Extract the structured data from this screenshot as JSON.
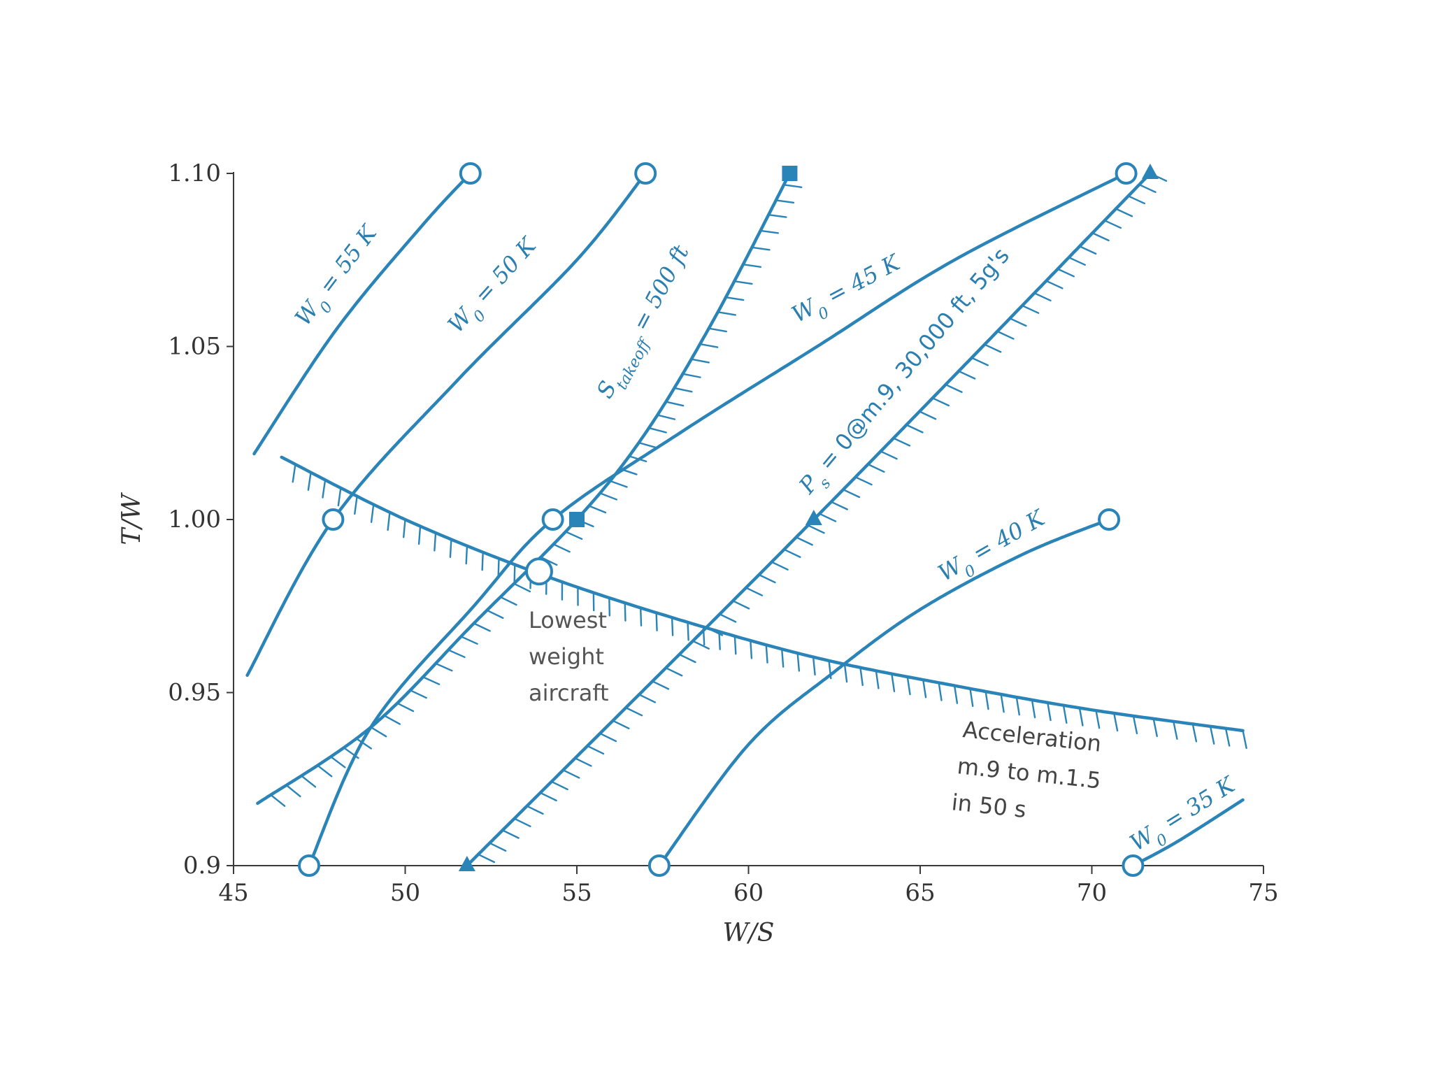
{
  "chart_data": {
    "type": "line",
    "title": "",
    "xlabel": "W/S",
    "ylabel": "T/W",
    "xlim": [
      45,
      75
    ],
    "ylim": [
      0.9,
      1.1
    ],
    "x_ticks": [
      "45",
      "50",
      "55",
      "60",
      "65",
      "70",
      "75"
    ],
    "y_ticks": [
      "0.9",
      "0.95",
      "1.00",
      "1.05",
      "1.10"
    ],
    "y_tick_values": [
      0.9,
      0.95,
      1.0,
      1.05,
      1.1
    ],
    "x_tick_values": [
      45,
      50,
      55,
      60,
      65,
      70,
      75
    ],
    "grid": false,
    "line_color": "#2a84b8",
    "series": [
      {
        "label": "W₀ = 55 K",
        "kind": "weight",
        "points": [
          [
            45.6,
            1.019
          ],
          [
            48.0,
            1.055
          ],
          [
            50.5,
            1.085
          ],
          [
            51.9,
            1.1
          ]
        ],
        "markers": [
          {
            "x": 51.9,
            "y": 1.1,
            "shape": "open-circle"
          }
        ]
      },
      {
        "label": "W₀ = 50 K",
        "kind": "weight",
        "points": [
          [
            45.4,
            0.955
          ],
          [
            47.9,
            1.0
          ],
          [
            51.5,
            1.04
          ],
          [
            55.0,
            1.075
          ],
          [
            57.0,
            1.1
          ]
        ],
        "markers": [
          {
            "x": 47.9,
            "y": 1.0,
            "shape": "open-circle"
          },
          {
            "x": 57.0,
            "y": 1.1,
            "shape": "open-circle"
          }
        ]
      },
      {
        "label": "W₀ = 45 K",
        "kind": "weight",
        "points": [
          [
            47.2,
            0.9
          ],
          [
            49.0,
            0.94
          ],
          [
            52.0,
            0.975
          ],
          [
            54.3,
            1.0
          ],
          [
            58.0,
            1.025
          ],
          [
            62.0,
            1.05
          ],
          [
            66.0,
            1.075
          ],
          [
            71.0,
            1.1
          ]
        ],
        "markers": [
          {
            "x": 47.2,
            "y": 0.9,
            "shape": "open-circle"
          },
          {
            "x": 54.3,
            "y": 1.0,
            "shape": "open-circle"
          },
          {
            "x": 71.0,
            "y": 1.1,
            "shape": "open-circle"
          }
        ]
      },
      {
        "label": "W₀ = 40 K",
        "kind": "weight",
        "points": [
          [
            57.4,
            0.9
          ],
          [
            60.0,
            0.935
          ],
          [
            62.5,
            0.956
          ],
          [
            65.0,
            0.974
          ],
          [
            68.0,
            0.99
          ],
          [
            70.5,
            1.0
          ]
        ],
        "markers": [
          {
            "x": 57.4,
            "y": 0.9,
            "shape": "open-circle"
          },
          {
            "x": 70.5,
            "y": 1.0,
            "shape": "open-circle"
          }
        ]
      },
      {
        "label": "W₀ = 35 K",
        "kind": "weight",
        "points": [
          [
            71.2,
            0.9
          ],
          [
            72.5,
            0.907
          ],
          [
            74.4,
            0.919
          ]
        ],
        "markers": [
          {
            "x": 71.2,
            "y": 0.9,
            "shape": "open-circle"
          }
        ]
      },
      {
        "label": "S_takeoff = 500 ft",
        "label_main": "S",
        "label_sub": "takeoff",
        "label_rest": " = 500 ft",
        "kind": "constraint",
        "points": [
          [
            45.7,
            0.918
          ],
          [
            49.0,
            0.94
          ],
          [
            52.0,
            0.97
          ],
          [
            55.0,
            1.0
          ],
          [
            57.0,
            1.025
          ],
          [
            59.0,
            1.058
          ],
          [
            61.2,
            1.1
          ]
        ],
        "markers": [
          {
            "x": 55.0,
            "y": 1.0,
            "shape": "square"
          },
          {
            "x": 61.2,
            "y": 1.1,
            "shape": "square"
          }
        ]
      },
      {
        "label": "Pₛ = 0@m.9, 30,000 ft, 5g's",
        "label_main": "P",
        "label_sub": "s",
        "label_rest": " = 0@m.9, 30,000 ft, 5g's",
        "kind": "constraint",
        "points": [
          [
            51.8,
            0.9
          ],
          [
            61.9,
            1.0
          ],
          [
            71.7,
            1.1
          ]
        ],
        "markers": [
          {
            "x": 51.8,
            "y": 0.9,
            "shape": "triangle"
          },
          {
            "x": 61.9,
            "y": 1.0,
            "shape": "triangle"
          },
          {
            "x": 71.7,
            "y": 1.1,
            "shape": "triangle"
          }
        ]
      },
      {
        "label": "Acceleration m.9 to m.1.5 in 50 s",
        "kind": "constraint",
        "points": [
          [
            46.4,
            1.018
          ],
          [
            50.0,
            1.0
          ],
          [
            54.0,
            0.984
          ],
          [
            58.0,
            0.971
          ],
          [
            62.0,
            0.96
          ],
          [
            66.0,
            0.952
          ],
          [
            70.0,
            0.945
          ],
          [
            74.4,
            0.939
          ]
        ],
        "markers": []
      }
    ],
    "annotations": [
      {
        "text_lines": [
          "Lowest",
          "weight",
          "aircraft"
        ],
        "x": 53.9,
        "y": 0.985,
        "marker": "open-circle-large"
      },
      {
        "text_lines": [
          "Acceleration",
          "m.9 to m.1.5",
          "in 50 s"
        ]
      }
    ]
  }
}
